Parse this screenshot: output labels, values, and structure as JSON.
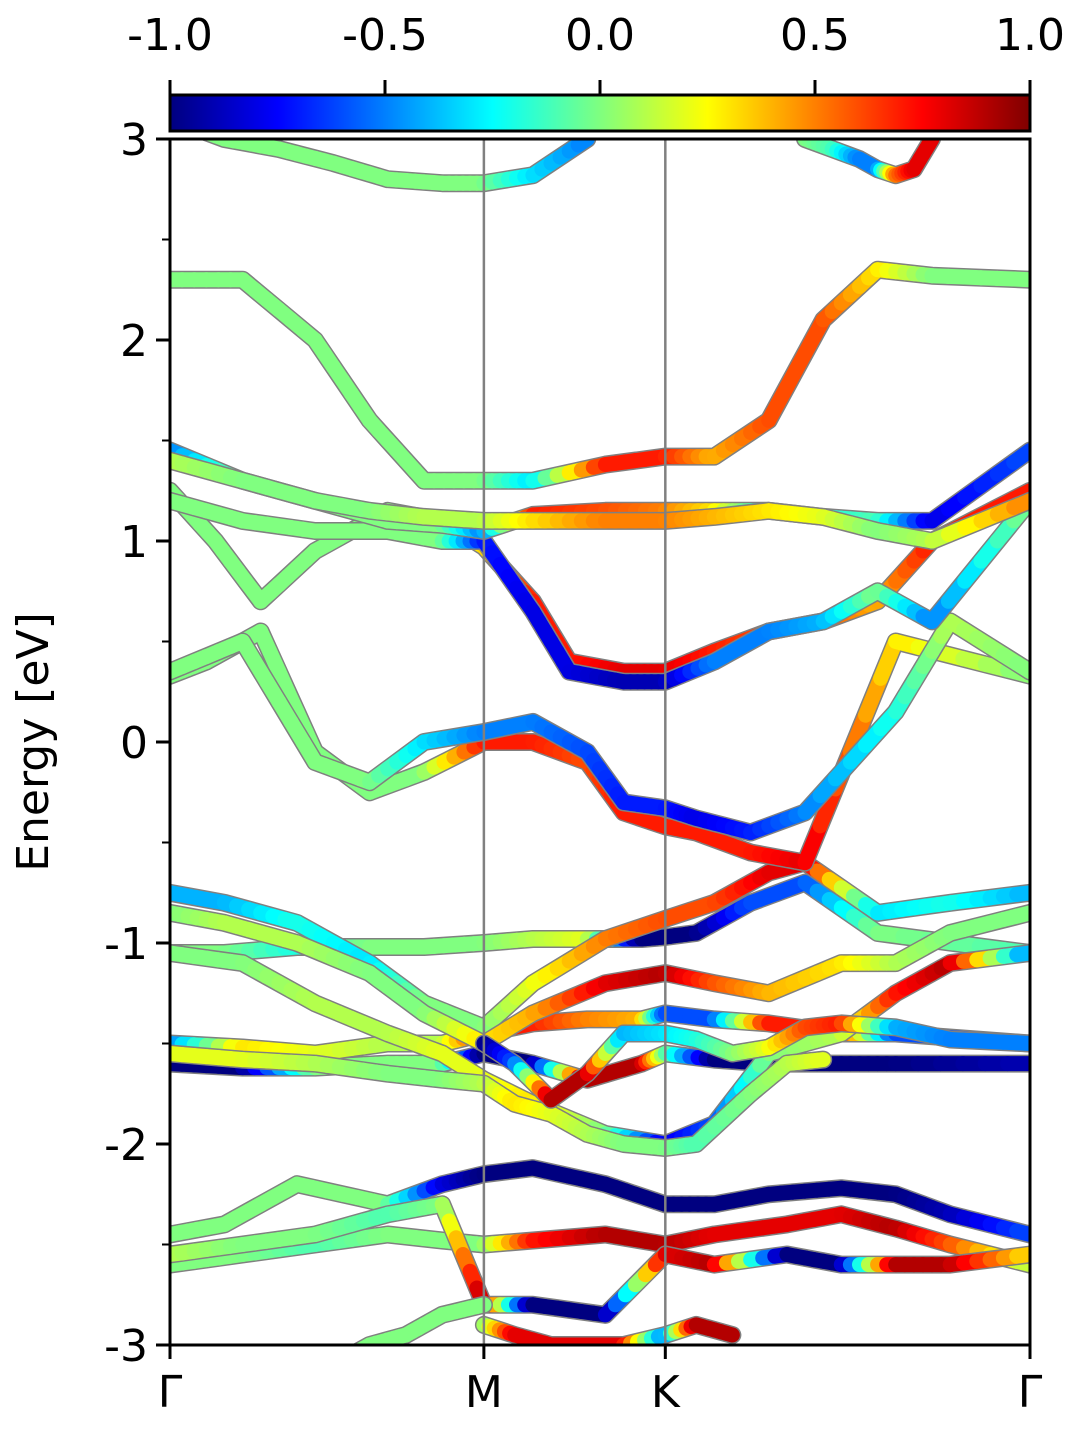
{
  "chart_data": {
    "type": "line",
    "title": "",
    "ylabel": "Energy [eV]",
    "xlabel": "",
    "ylim": [
      -3,
      3
    ],
    "x_range": [
      0,
      4.74
    ],
    "y_ticks_major": [
      "3",
      "2",
      "1",
      "0",
      "-1",
      "-2",
      "-3"
    ],
    "y_tick_values": [
      3,
      2,
      1,
      0,
      -1,
      -2,
      -3
    ],
    "y_minor_ticks": [
      2.5,
      1.5,
      0.5,
      -0.5,
      -1.5,
      -2.5
    ],
    "k_labels": [
      "Γ",
      "M",
      "K",
      "Γ"
    ],
    "k_positions": [
      0,
      1.73,
      2.73,
      4.74
    ],
    "vertical_lines": [
      1.73,
      2.73
    ],
    "colorbar": {
      "ticks": [
        "-1.0",
        "-0.5",
        "0.0",
        "0.5",
        "1.0"
      ],
      "tick_values": [
        -1.0,
        -0.5,
        0.0,
        0.5,
        1.0
      ],
      "range": [
        -1.0,
        1.0
      ],
      "colormap": "jet"
    },
    "series": [
      {
        "x": [
          0,
          0.3,
          0.7,
          1.2,
          1.5,
          1.73,
          2.0,
          2.4,
          2.73,
          3.0,
          3.3,
          3.7,
          4.0,
          4.3,
          4.74
        ],
        "y": [
          -2.45,
          -2.4,
          -2.2,
          -2.3,
          -2.2,
          -2.15,
          -2.12,
          -2.2,
          -2.3,
          -2.3,
          -2.25,
          -2.22,
          -2.25,
          -2.35,
          -2.45
        ],
        "c": [
          0.0,
          0.0,
          0.0,
          0.0,
          -0.8,
          -1.0,
          -1.0,
          -1.0,
          -1.0,
          -1.0,
          -1.0,
          -1.0,
          -1.0,
          -0.9,
          -0.6
        ]
      },
      {
        "x": [
          0,
          0.4,
          0.8,
          1.2,
          1.5,
          1.73,
          2.0,
          2.4,
          2.73,
          3.0,
          3.4,
          3.7,
          4.0,
          4.3,
          4.74
        ],
        "y": [
          -2.6,
          -2.55,
          -2.5,
          -2.45,
          -2.48,
          -2.5,
          -2.48,
          -2.45,
          -2.5,
          -2.45,
          -2.4,
          -2.35,
          -2.42,
          -2.5,
          -2.6
        ],
        "c": [
          0.0,
          0.0,
          -0.1,
          0.0,
          0.0,
          0.0,
          0.7,
          0.9,
          0.9,
          0.8,
          0.8,
          0.8,
          0.9,
          0.6,
          0.1
        ]
      },
      {
        "x": [
          0,
          0.4,
          0.8,
          1.2,
          1.5,
          1.73,
          2.0,
          2.4,
          2.73,
          3.0,
          3.4,
          3.7,
          4.0,
          4.3,
          4.74
        ],
        "y": [
          -2.55,
          -2.5,
          -2.45,
          -2.35,
          -2.3,
          -2.8,
          -2.8,
          -2.85,
          -2.55,
          -2.6,
          -2.55,
          -2.6,
          -2.6,
          -2.6,
          -2.55
        ],
        "c": [
          0.1,
          0.0,
          0.0,
          -0.1,
          0.0,
          0.9,
          -1.0,
          -1.0,
          0.8,
          0.9,
          -1.0,
          -1.0,
          0.9,
          0.9,
          0.3
        ]
      },
      {
        "x": [
          0,
          0.4,
          0.8,
          1.2,
          1.5,
          1.73,
          2.0,
          2.3,
          2.6,
          2.73,
          3.0,
          3.3,
          3.7,
          4.0,
          4.74
        ],
        "y": [
          -1.6,
          -1.62,
          -1.62,
          -1.6,
          -1.6,
          -1.55,
          -1.6,
          -1.68,
          -1.6,
          -1.55,
          -1.58,
          -1.6,
          -1.6,
          -1.6,
          -1.6
        ],
        "c": [
          -1.0,
          -1.0,
          0.0,
          0.0,
          0.0,
          -1.0,
          -1.0,
          0.9,
          0.9,
          0.0,
          -1.0,
          -1.0,
          -1.0,
          -1.0,
          -0.9
        ]
      },
      {
        "x": [
          0,
          0.4,
          0.8,
          1.2,
          1.5,
          1.73,
          2.0,
          2.3,
          2.6,
          2.73,
          3.0,
          3.3,
          3.7,
          4.0,
          4.74
        ],
        "y": [
          -1.5,
          -1.52,
          -1.55,
          -1.5,
          -1.5,
          -1.45,
          -1.4,
          -1.38,
          -1.38,
          -1.35,
          -1.38,
          -1.4,
          -1.45,
          -1.45,
          -1.5
        ],
        "c": [
          -0.5,
          0.3,
          0.2,
          0.1,
          0.1,
          0.7,
          0.7,
          0.5,
          0.4,
          -0.6,
          -0.6,
          0.7,
          0.7,
          -0.6,
          -0.6
        ]
      },
      {
        "x": [
          0,
          0.3,
          0.7,
          1.1,
          1.4,
          1.73,
          2.0,
          2.3,
          2.6,
          2.73,
          2.9,
          3.2,
          3.5,
          3.9,
          4.74
        ],
        "y": [
          -1.05,
          -1.05,
          -1.02,
          -1.02,
          -1.02,
          -1.0,
          -0.98,
          -0.98,
          -0.98,
          -0.97,
          -0.95,
          -0.8,
          -0.7,
          -0.95,
          -1.05
        ],
        "c": [
          0.0,
          0.0,
          -0.2,
          0.0,
          0.0,
          0.0,
          0.1,
          0.2,
          -1.0,
          -1.0,
          -1.0,
          -0.6,
          -0.6,
          0.0,
          -0.1
        ]
      },
      {
        "x": [
          0,
          0.3,
          0.7,
          1.1,
          1.4,
          1.73,
          2.0,
          2.4,
          2.73,
          3.0,
          3.3,
          3.5,
          3.9,
          4.3,
          4.74
        ],
        "y": [
          -0.75,
          -0.8,
          -0.9,
          -1.1,
          -1.3,
          -1.42,
          -1.2,
          -0.98,
          -0.88,
          -0.8,
          -0.65,
          -0.6,
          -0.85,
          -0.8,
          -0.75
        ],
        "c": [
          -0.4,
          -0.4,
          -0.2,
          -0.3,
          0.0,
          0.0,
          0.2,
          0.5,
          0.6,
          0.6,
          0.8,
          0.8,
          -0.3,
          -0.2,
          -0.4
        ]
      },
      {
        "x": [
          0,
          0.3,
          0.7,
          1.1,
          1.4,
          1.73,
          2.0,
          2.4,
          2.73,
          3.0,
          3.3,
          3.7,
          4.0,
          4.3,
          4.74
        ],
        "y": [
          -0.85,
          -0.9,
          -1.0,
          -1.15,
          -1.35,
          -1.5,
          -1.35,
          -1.2,
          -1.15,
          -1.2,
          -1.25,
          -1.1,
          -1.1,
          -0.95,
          -0.85
        ],
        "c": [
          0.0,
          0.1,
          0.1,
          0.0,
          0.0,
          0.3,
          0.4,
          0.8,
          0.9,
          0.6,
          0.4,
          0.3,
          0.1,
          0.0,
          0.0
        ]
      },
      {
        "x": [
          0,
          0.4,
          0.8,
          1.2,
          1.5,
          1.73,
          2.0,
          2.4,
          2.73,
          3.0,
          3.3,
          3.7,
          4.0,
          4.3,
          4.74
        ],
        "y": [
          -1.05,
          -1.1,
          -1.3,
          -1.45,
          -1.55,
          -1.68,
          -1.8,
          -1.95,
          -2.0,
          -1.9,
          -1.55,
          -1.45,
          -1.25,
          -1.1,
          -1.05
        ],
        "c": [
          0.0,
          0.0,
          0.1,
          0.1,
          0.2,
          0.2,
          0.3,
          0.0,
          -0.8,
          -0.6,
          0.0,
          0.1,
          0.7,
          0.9,
          -0.5
        ]
      },
      {
        "x": [
          0,
          0.4,
          0.8,
          1.2,
          1.5,
          1.73,
          1.9,
          2.1,
          2.3,
          2.5,
          2.73,
          2.9,
          3.2,
          3.4,
          3.6
        ],
        "y": [
          -1.55,
          -1.58,
          -1.6,
          -1.65,
          -1.68,
          -1.7,
          -1.8,
          -1.85,
          -1.95,
          -2.0,
          -2.02,
          -2.0,
          -1.75,
          -1.6,
          -1.58
        ],
        "c": [
          0.2,
          0.2,
          0.1,
          0.0,
          0.0,
          0.1,
          0.3,
          0.2,
          0.1,
          0.0,
          0.0,
          -0.1,
          0.0,
          0.1,
          0.2
        ]
      },
      {
        "x": [
          1.73,
          1.9,
          2.1,
          2.3,
          2.5,
          2.73,
          2.9,
          3.1,
          3.3,
          3.5,
          3.7,
          4.0,
          4.3,
          4.74
        ],
        "y": [
          -1.5,
          -1.6,
          -1.78,
          -1.65,
          -1.45,
          -1.45,
          -1.48,
          -1.55,
          -1.52,
          -1.42,
          -1.4,
          -1.42,
          -1.48,
          -1.5
        ],
        "c": [
          -1.0,
          -0.6,
          0.9,
          0.9,
          -0.4,
          -0.3,
          -0.2,
          0.0,
          0.2,
          0.6,
          0.7,
          -0.4,
          -0.5,
          -0.5
        ]
      },
      {
        "x": [
          0,
          0.2,
          0.5,
          0.8,
          1.1,
          1.4,
          1.73,
          2.0,
          2.3,
          2.5,
          2.73,
          2.9,
          3.2,
          3.5,
          4.0,
          4.74
        ],
        "y": [
          0.33,
          0.4,
          0.55,
          -0.05,
          -0.25,
          -0.15,
          0.0,
          0.0,
          -0.1,
          -0.35,
          -0.42,
          -0.45,
          -0.55,
          -0.6,
          0.5,
          0.33
        ],
        "c": [
          0.0,
          0.0,
          0.0,
          0.0,
          0.0,
          0.0,
          0.7,
          0.7,
          0.6,
          0.7,
          0.7,
          0.7,
          0.7,
          0.8,
          0.3,
          0.0
        ]
      },
      {
        "x": [
          0,
          0.4,
          0.8,
          1.1,
          1.4,
          1.73,
          2.0,
          2.3,
          2.5,
          2.73,
          2.9,
          3.2,
          3.5,
          4.0,
          4.3,
          4.74
        ],
        "y": [
          0.35,
          0.5,
          -0.1,
          -0.2,
          0.0,
          0.05,
          0.1,
          -0.05,
          -0.3,
          -0.33,
          -0.38,
          -0.45,
          -0.35,
          0.15,
          0.6,
          0.35
        ],
        "c": [
          0.0,
          0.0,
          0.0,
          0.0,
          -0.3,
          -0.5,
          -0.5,
          -0.6,
          -0.7,
          -0.7,
          -0.8,
          -0.7,
          -0.5,
          -0.2,
          0.1,
          0.0
        ]
      },
      {
        "x": [
          0,
          0.25,
          0.5,
          0.8,
          1.2,
          1.5,
          1.73,
          2.0,
          2.2,
          2.5,
          2.73,
          3.0,
          3.3,
          3.6,
          3.9,
          4.2,
          4.74
        ],
        "y": [
          1.25,
          1.0,
          0.7,
          0.95,
          1.15,
          1.1,
          0.97,
          0.7,
          0.4,
          0.35,
          0.35,
          0.45,
          0.55,
          0.6,
          0.7,
          1.0,
          1.25
        ],
        "c": [
          0.0,
          0.0,
          0.0,
          0.0,
          0.0,
          0.2,
          0.3,
          0.7,
          0.7,
          0.8,
          0.8,
          0.7,
          0.6,
          0.6,
          0.4,
          0.7,
          0.7
        ]
      },
      {
        "x": [
          0,
          0.4,
          0.8,
          1.2,
          1.5,
          1.73,
          2.0,
          2.2,
          2.5,
          2.73,
          3.0,
          3.3,
          3.6,
          3.9,
          4.2,
          4.74
        ],
        "y": [
          1.2,
          1.1,
          1.05,
          1.05,
          1.0,
          1.0,
          0.65,
          0.35,
          0.3,
          0.3,
          0.4,
          0.55,
          0.6,
          0.75,
          0.6,
          1.2
        ],
        "c": [
          0.0,
          0.0,
          0.0,
          0.0,
          0.0,
          -0.7,
          -0.8,
          -0.8,
          -0.9,
          -0.9,
          -0.5,
          -0.5,
          -0.4,
          0.0,
          -0.5,
          0.0
        ]
      },
      {
        "x": [
          0,
          0.4,
          0.8,
          1.2,
          1.5,
          1.73,
          2.0,
          2.4,
          2.73,
          3.0,
          3.3,
          3.6,
          3.9,
          4.2,
          4.74
        ],
        "y": [
          1.45,
          1.3,
          1.2,
          1.1,
          1.08,
          1.05,
          1.13,
          1.15,
          1.15,
          1.15,
          1.15,
          1.12,
          1.1,
          1.1,
          1.45
        ],
        "c": [
          -0.5,
          0.0,
          0.0,
          0.0,
          0.0,
          -0.5,
          0.7,
          0.6,
          0.5,
          0.3,
          -0.3,
          -0.2,
          -0.1,
          -0.8,
          -0.6
        ]
      },
      {
        "x": [
          0,
          0.4,
          0.8,
          1.1,
          1.4,
          1.73,
          2.0,
          2.4,
          2.73,
          3.0,
          3.3,
          3.6,
          3.9,
          4.2,
          4.74
        ],
        "y": [
          1.4,
          1.3,
          1.2,
          1.15,
          1.12,
          1.1,
          1.1,
          1.1,
          1.1,
          1.12,
          1.15,
          1.12,
          1.05,
          1.0,
          1.2
        ],
        "c": [
          0.1,
          0.0,
          0.0,
          0.0,
          0.1,
          0.1,
          0.3,
          0.5,
          0.5,
          0.4,
          0.3,
          0.2,
          0.0,
          0.1,
          0.5
        ]
      },
      {
        "x": [
          0,
          0.4,
          0.8,
          1.1,
          1.4,
          1.73,
          2.0,
          2.4,
          2.73,
          3.0,
          3.3,
          3.6,
          3.9,
          4.2,
          4.74
        ],
        "y": [
          2.3,
          2.3,
          2.0,
          1.6,
          1.3,
          1.3,
          1.3,
          1.38,
          1.42,
          1.42,
          1.6,
          2.1,
          2.35,
          2.32,
          2.3
        ],
        "c": [
          0.0,
          0.0,
          0.0,
          0.0,
          0.0,
          0.0,
          -0.3,
          0.7,
          0.7,
          0.4,
          0.6,
          0.6,
          0.3,
          0.0,
          0.0
        ]
      },
      {
        "x": [
          0,
          0.3,
          0.6,
          0.9,
          1.2,
          1.5,
          1.73,
          2.0,
          2.3
        ],
        "y": [
          3.1,
          3.0,
          2.95,
          2.88,
          2.8,
          2.78,
          2.78,
          2.82,
          3.0
        ],
        "c": [
          0.0,
          0.0,
          0.0,
          0.0,
          0.0,
          0.0,
          0.0,
          -0.3,
          -0.5
        ]
      },
      {
        "x": [
          3.5,
          3.65,
          3.8,
          3.9,
          4.0,
          4.1,
          4.2
        ],
        "y": [
          3.0,
          2.95,
          2.9,
          2.85,
          2.82,
          2.85,
          3.0
        ],
        "c": [
          0.0,
          -0.1,
          -0.5,
          -0.5,
          0.5,
          0.8,
          0.8
        ]
      },
      {
        "x": [
          1.73,
          1.9,
          2.1,
          2.3,
          2.5,
          2.73,
          2.9,
          3.1
        ],
        "y": [
          -2.9,
          -2.95,
          -3.0,
          -3.0,
          -3.0,
          -2.95,
          -2.9,
          -2.95
        ],
        "c": [
          0.0,
          0.8,
          0.8,
          0.8,
          0.8,
          -0.5,
          0.9,
          0.9
        ]
      },
      {
        "x": [
          0.9,
          1.1,
          1.3,
          1.5,
          1.73
        ],
        "y": [
          -3.1,
          -3.0,
          -2.95,
          -2.85,
          -2.8
        ],
        "c": [
          0.0,
          0.0,
          0.0,
          0.0,
          0.0
        ]
      }
    ]
  }
}
